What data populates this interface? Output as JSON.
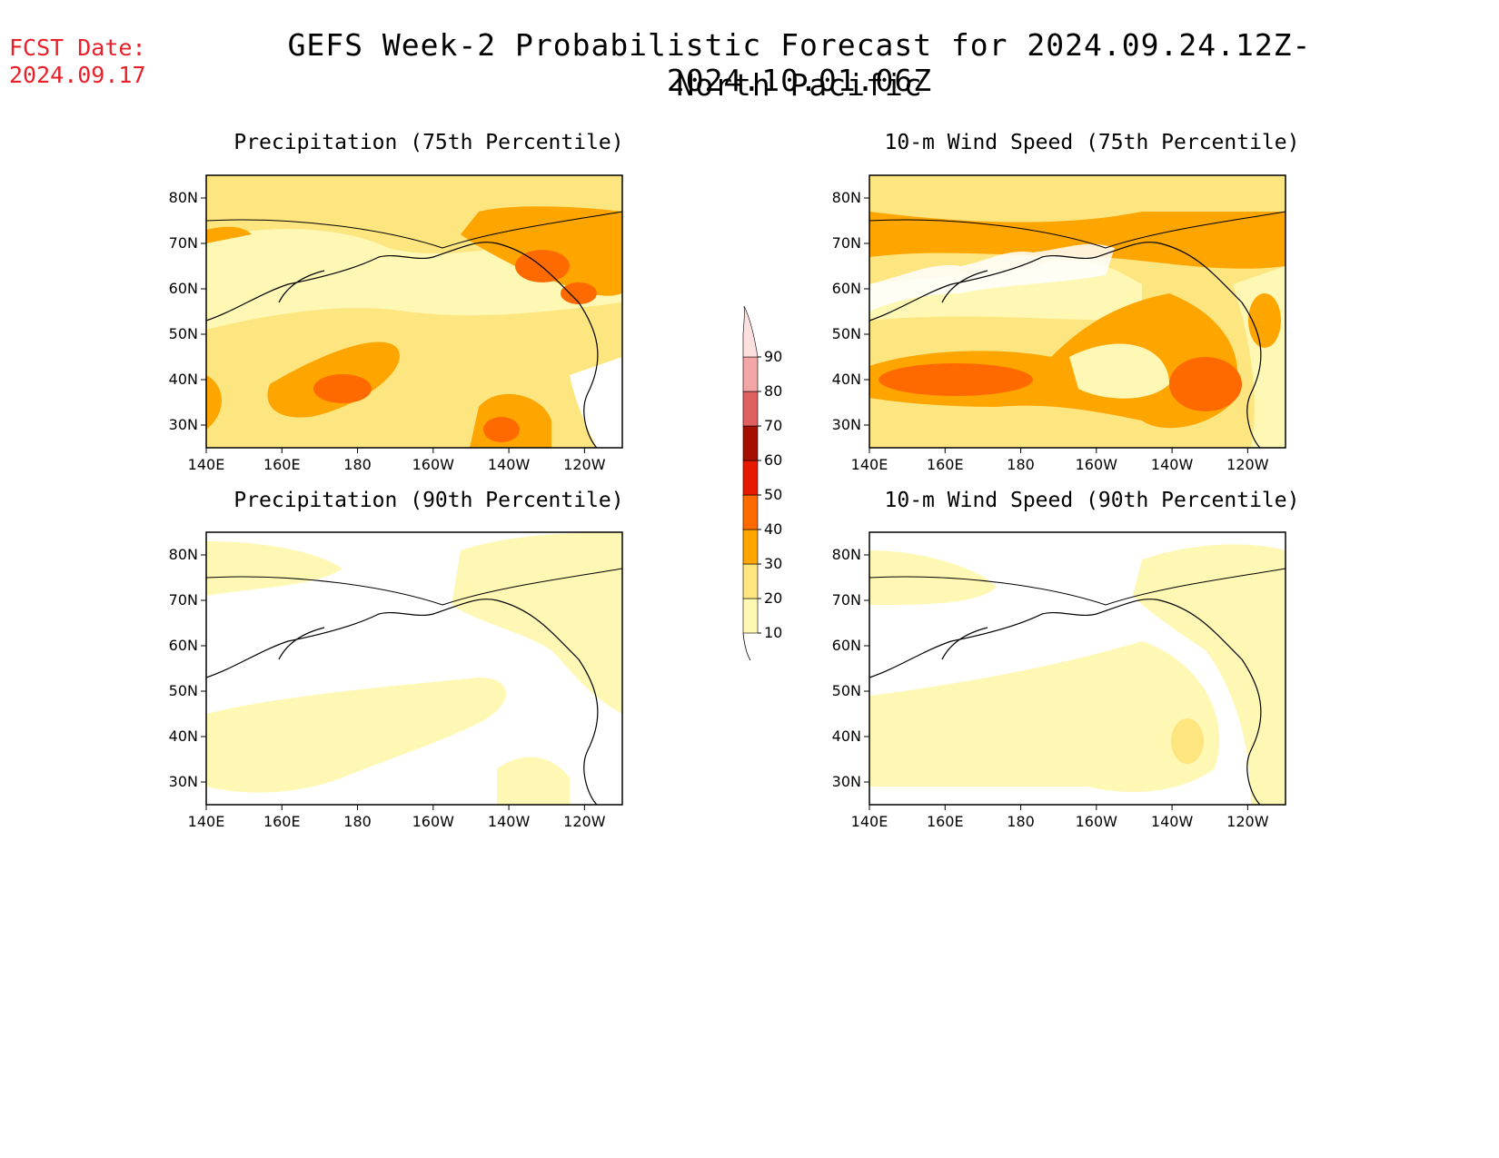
{
  "header": {
    "fcst_label": "FCST Date:",
    "fcst_date": "2024.09.17",
    "title_line1": "GEFS Week-2 Probabilistic Forecast for 2024.09.24.12Z-2024.10.01.06Z",
    "title_line2": "North Pacific"
  },
  "colorbar": {
    "levels": [
      10,
      20,
      30,
      40,
      50,
      60,
      70,
      80,
      90
    ],
    "labels": [
      "10",
      "20",
      "30",
      "40",
      "50",
      "60",
      "70",
      "80",
      "90"
    ],
    "colors": [
      "#fff8b4",
      "#fde580",
      "#ffa500",
      "#ff6a00",
      "#e61a00",
      "#a50f00",
      "#e06060",
      "#f4a6a6",
      "#fce0e0"
    ]
  },
  "axes": {
    "lon_labels": [
      "140E",
      "160E",
      "180",
      "160W",
      "140W",
      "120W"
    ],
    "lat_labels": [
      "80N",
      "70N",
      "60N",
      "50N",
      "40N",
      "30N"
    ]
  },
  "panels": [
    {
      "id": "precip75",
      "title": "Precipitation (75th Percentile)"
    },
    {
      "id": "wind75",
      "title": "10-m Wind Speed (75th Percentile)"
    },
    {
      "id": "precip90",
      "title": "Precipitation (90th Percentile)"
    },
    {
      "id": "wind90",
      "title": "10-m Wind Speed (90th Percentile)"
    }
  ]
}
